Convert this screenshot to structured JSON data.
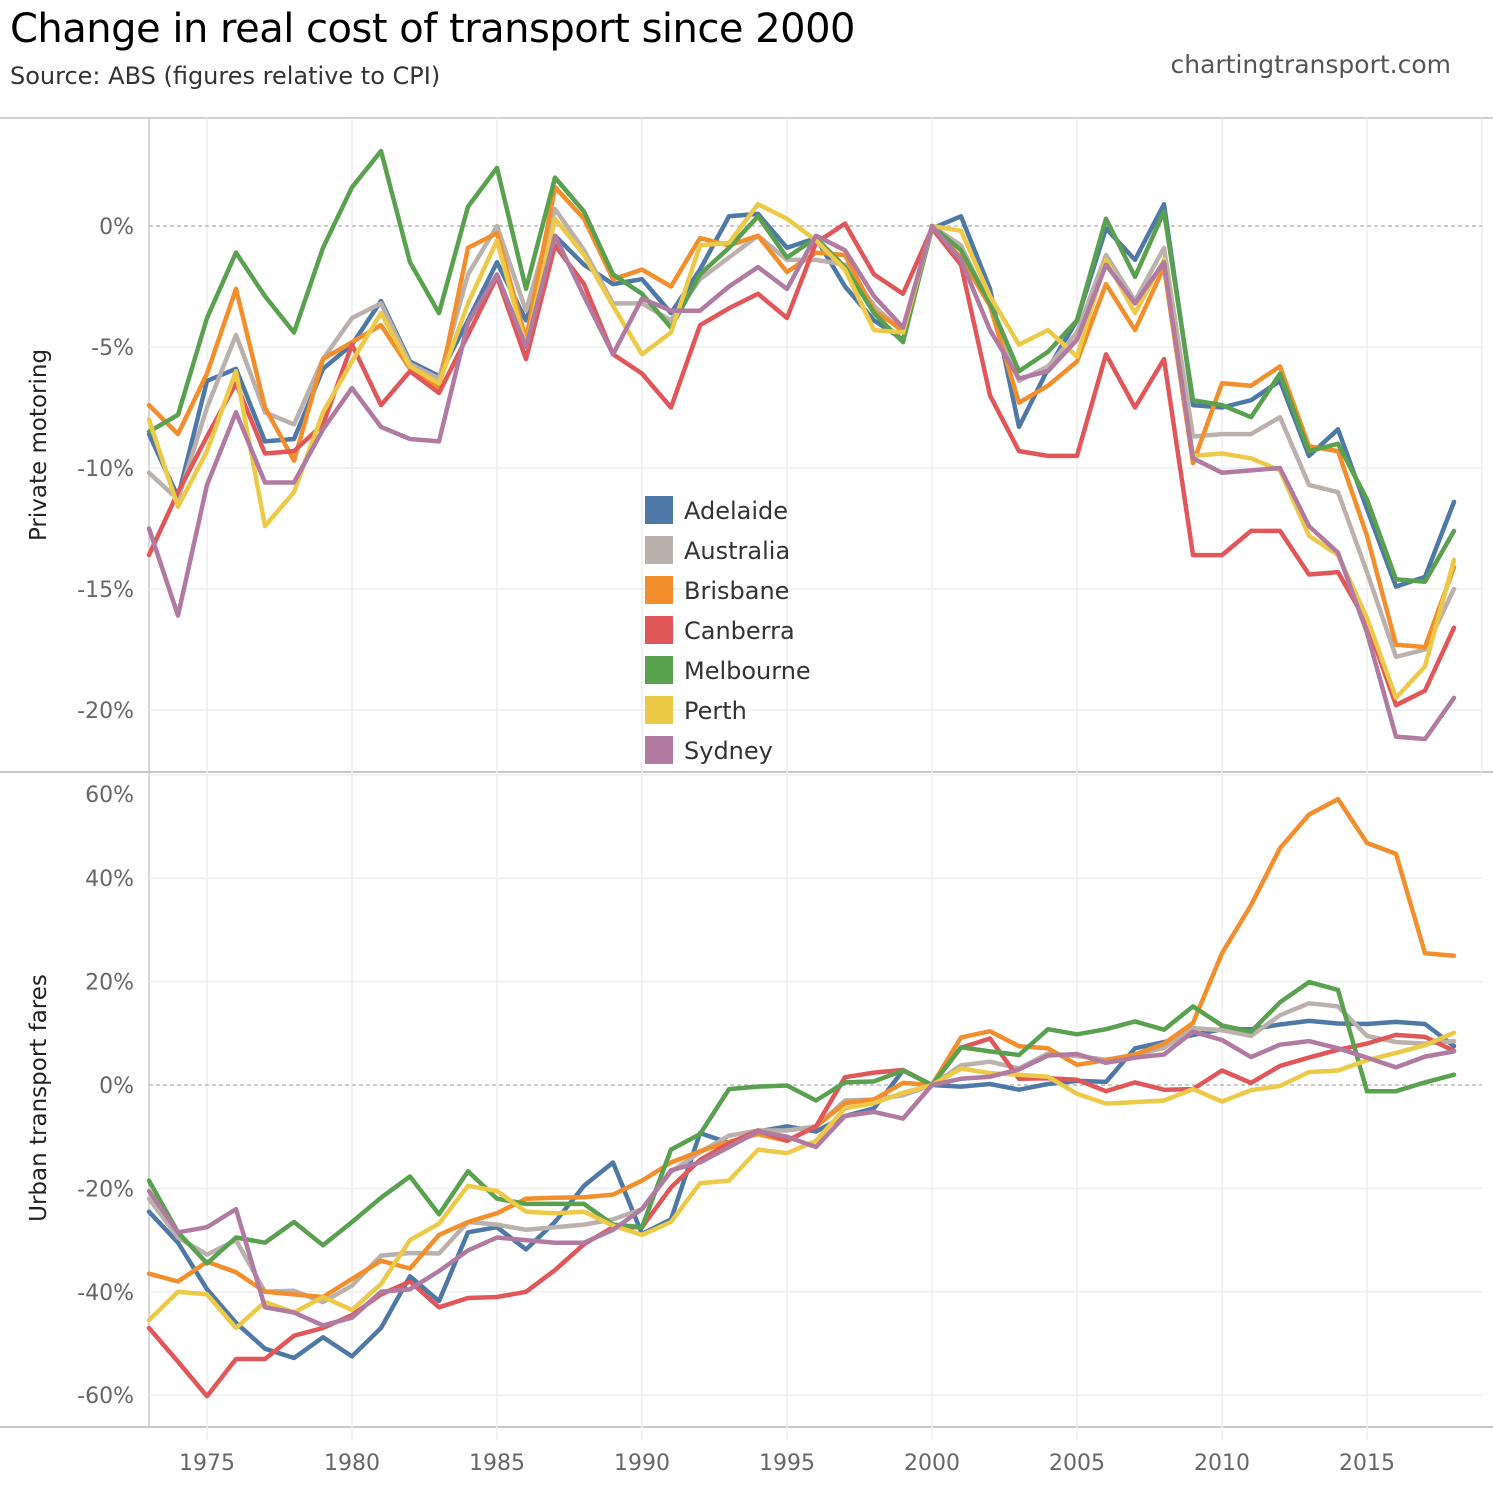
{
  "header": {
    "title": "Change in real cost of transport since 2000",
    "subtitle": "Source: ABS (figures relative to CPI)",
    "credit": "chartingtransport.com"
  },
  "chart_data": [
    {
      "type": "line",
      "panel": "top",
      "title": "Change in real cost of transport since 2000",
      "ylabel": "Private motoring",
      "xlabel": "",
      "ylim": [
        -23,
        4
      ],
      "yticks": [
        0,
        -5,
        -10,
        -15,
        -20
      ],
      "ytick_labels": [
        "0%",
        "-5%",
        "-10%",
        "-15%",
        "-20%"
      ],
      "xlim": [
        1973,
        2018
      ],
      "grid": true,
      "reference_line": 0,
      "legend_position": "center",
      "x": [
        1973,
        1974,
        1975,
        1976,
        1977,
        1978,
        1979,
        1980,
        1981,
        1982,
        1983,
        1984,
        1985,
        1986,
        1987,
        1988,
        1989,
        1990,
        1991,
        1992,
        1993,
        1994,
        1995,
        1996,
        1997,
        1998,
        1999,
        2000,
        2001,
        2002,
        2003,
        2004,
        2005,
        2006,
        2007,
        2008,
        2009,
        2010,
        2011,
        2012,
        2013,
        2014,
        2015,
        2016,
        2017,
        2018
      ],
      "series": [
        {
          "name": "Adelaide",
          "color": "#4e79a7",
          "values": [
            -8.6,
            -11.2,
            -6.4,
            -5.9,
            -8.9,
            -8.8,
            -5.9,
            -4.9,
            -3.1,
            -5.6,
            -6.2,
            -3.9,
            -1.5,
            -3.9,
            -0.4,
            -1.6,
            -2.4,
            -2.2,
            -3.6,
            -1.8,
            0.4,
            0.5,
            -0.9,
            -0.5,
            -2.5,
            -3.9,
            -4.7,
            -0.1,
            0.4,
            -2.6,
            -8.3,
            -5.9,
            -3.9,
            -0.1,
            -1.4,
            0.9,
            -7.4,
            -7.5,
            -7.2,
            -6.4,
            -9.5,
            -8.4,
            -11.7,
            -14.9,
            -14.5,
            -11.4
          ]
        },
        {
          "name": "Australia",
          "color": "#bab0ac",
          "values": [
            -10.2,
            -11.3,
            -7.5,
            -4.5,
            -7.7,
            -8.2,
            -5.5,
            -3.8,
            -3.2,
            -5.7,
            -6.3,
            -2.0,
            0.0,
            -3.5,
            0.7,
            -1.0,
            -3.2,
            -3.2,
            -3.9,
            -2.2,
            -1.3,
            -0.4,
            -1.4,
            -1.4,
            -1.6,
            -3.3,
            -4.4,
            0.0,
            -0.8,
            -3.3,
            -6.4,
            -5.8,
            -4.4,
            -1.2,
            -3.1,
            -0.9,
            -8.7,
            -8.6,
            -8.6,
            -7.9,
            -10.7,
            -11.0,
            -14.3,
            -17.8,
            -17.5,
            -15.0
          ]
        },
        {
          "name": "Brisbane",
          "color": "#f28e2b",
          "values": [
            -7.4,
            -8.6,
            -6.1,
            -2.6,
            -7.5,
            -9.7,
            -5.5,
            -4.8,
            -4.1,
            -5.9,
            -6.7,
            -0.9,
            -0.3,
            -4.7,
            1.6,
            0.3,
            -2.2,
            -1.8,
            -2.5,
            -0.5,
            -0.8,
            -0.4,
            -1.9,
            -1.1,
            -1.2,
            -3.5,
            -4.3,
            -0.1,
            -1.3,
            -3.3,
            -7.3,
            -6.6,
            -5.6,
            -2.4,
            -4.3,
            -1.7,
            -9.8,
            -6.5,
            -6.6,
            -5.8,
            -9.1,
            -9.3,
            -12.8,
            -17.3,
            -17.4,
            -14.1
          ]
        },
        {
          "name": "Canberra",
          "color": "#e15759",
          "values": [
            -13.6,
            -11.0,
            -8.7,
            -6.5,
            -9.4,
            -9.3,
            -8.2,
            -4.9,
            -7.4,
            -6.0,
            -6.9,
            -4.5,
            -2.1,
            -5.5,
            -0.8,
            -2.4,
            -5.3,
            -6.1,
            -7.5,
            -4.1,
            -3.4,
            -2.8,
            -3.8,
            -0.7,
            0.1,
            -2.0,
            -2.8,
            -0.1,
            -1.6,
            -7.0,
            -9.3,
            -9.5,
            -9.5,
            -5.3,
            -7.5,
            -5.5,
            -13.6,
            -13.6,
            -12.6,
            -12.6,
            -14.4,
            -14.3,
            -16.4,
            -19.8,
            -19.2,
            -16.6
          ]
        },
        {
          "name": "Melbourne",
          "color": "#59a14f",
          "values": [
            -8.5,
            -7.8,
            -3.8,
            -1.1,
            -2.9,
            -4.4,
            -0.9,
            1.6,
            3.1,
            -1.5,
            -3.6,
            0.8,
            2.4,
            -2.6,
            2.0,
            0.6,
            -2.0,
            -2.8,
            -4.2,
            -2.0,
            -0.9,
            0.4,
            -1.3,
            -0.5,
            -1.7,
            -3.6,
            -4.8,
            0.0,
            -1.0,
            -3.2,
            -6.0,
            -5.2,
            -3.9,
            0.3,
            -2.1,
            0.6,
            -7.2,
            -7.4,
            -7.9,
            -6.1,
            -9.3,
            -9.0,
            -11.3,
            -14.6,
            -14.7,
            -12.6
          ]
        },
        {
          "name": "Perth",
          "color": "#edc948",
          "values": [
            -8.0,
            -11.6,
            -9.3,
            -6.0,
            -12.4,
            -11.0,
            -7.7,
            -5.6,
            -3.6,
            -5.8,
            -6.5,
            -3.2,
            -0.6,
            -5.0,
            0.3,
            -1.2,
            -3.3,
            -5.3,
            -4.4,
            -0.8,
            -0.7,
            0.9,
            0.3,
            -0.6,
            -1.8,
            -4.3,
            -4.4,
            0.0,
            -0.2,
            -2.9,
            -4.9,
            -4.3,
            -5.4,
            -1.4,
            -3.6,
            -1.4,
            -9.5,
            -9.4,
            -9.6,
            -10.1,
            -12.8,
            -13.6,
            -16.2,
            -19.5,
            -18.2,
            -13.8
          ]
        },
        {
          "name": "Sydney",
          "color": "#b07aa1",
          "values": [
            -12.5,
            -16.1,
            -10.7,
            -7.7,
            -10.6,
            -10.6,
            -8.4,
            -6.7,
            -8.3,
            -8.8,
            -8.9,
            -4.0,
            -2.0,
            -5.0,
            -0.4,
            -2.9,
            -5.3,
            -3.0,
            -3.5,
            -3.5,
            -2.5,
            -1.7,
            -2.6,
            -0.4,
            -1.0,
            -2.9,
            -4.2,
            0.0,
            -1.4,
            -4.3,
            -6.3,
            -6.0,
            -4.7,
            -1.6,
            -3.2,
            -1.5,
            -9.6,
            -10.2,
            -10.1,
            -10.0,
            -12.4,
            -13.5,
            -16.8,
            -21.1,
            -21.2,
            -19.5
          ]
        }
      ]
    },
    {
      "type": "line",
      "panel": "bottom",
      "ylabel": "Urban transport fares",
      "xlabel": "",
      "ylim": [
        -66,
        60
      ],
      "yticks": [
        60,
        40,
        20,
        0,
        -20,
        -40,
        -60
      ],
      "ytick_labels": [
        "60%",
        "40%",
        "20%",
        "0%",
        "-20%",
        "-40%",
        "-60%"
      ],
      "xlim": [
        1973,
        2018
      ],
      "xticks": [
        1975,
        1980,
        1985,
        1990,
        1995,
        2000,
        2005,
        2010,
        2015
      ],
      "xtick_labels": [
        "1975",
        "1980",
        "1985",
        "1990",
        "1995",
        "2000",
        "2005",
        "2010",
        "2015"
      ],
      "grid": true,
      "reference_line": 0,
      "x": [
        1973,
        1974,
        1975,
        1976,
        1977,
        1978,
        1979,
        1980,
        1981,
        1982,
        1983,
        1984,
        1985,
        1986,
        1987,
        1988,
        1989,
        1990,
        1991,
        1992,
        1993,
        1994,
        1995,
        1996,
        1997,
        1998,
        1999,
        2000,
        2001,
        2002,
        2003,
        2004,
        2005,
        2006,
        2007,
        2008,
        2009,
        2010,
        2011,
        2012,
        2013,
        2014,
        2015,
        2016,
        2017,
        2018
      ],
      "series": [
        {
          "name": "Adelaide",
          "color": "#4e79a7",
          "values": [
            -24.5,
            -30.5,
            -39.5,
            -46.0,
            -51.0,
            -52.8,
            -48.8,
            -52.5,
            -47.0,
            -37.0,
            -41.8,
            -28.5,
            -27.5,
            -31.8,
            -26.5,
            -19.5,
            -15.0,
            -28.8,
            -26.0,
            -9.3,
            -11.2,
            -9.0,
            -8.0,
            -9.0,
            -6.0,
            -4.5,
            2.8,
            0.0,
            -0.3,
            0.2,
            -0.9,
            0.2,
            0.8,
            0.6,
            7.1,
            8.3,
            9.7,
            10.8,
            10.8,
            11.7,
            12.4,
            11.9,
            11.8,
            12.2,
            11.8,
            7.5
          ]
        },
        {
          "name": "Australia",
          "color": "#bab0ac",
          "values": [
            -22.0,
            -29.5,
            -32.8,
            -30.0,
            -40.0,
            -39.8,
            -42.0,
            -38.8,
            -33.0,
            -32.5,
            -32.6,
            -26.5,
            -27.0,
            -28.0,
            -27.5,
            -27.0,
            -26.0,
            -24.0,
            -16.8,
            -13.0,
            -9.8,
            -8.8,
            -8.8,
            -8.0,
            -3.0,
            -2.8,
            -2.0,
            0.0,
            3.8,
            4.5,
            3.2,
            6.1,
            5.6,
            4.9,
            5.8,
            7.2,
            11.0,
            10.6,
            9.5,
            13.5,
            15.8,
            15.2,
            9.5,
            8.3,
            8.0,
            8.5
          ]
        },
        {
          "name": "Brisbane",
          "color": "#f28e2b",
          "values": [
            -36.5,
            -38.0,
            -34.2,
            -36.2,
            -40.0,
            -40.5,
            -41.0,
            -37.5,
            -34.0,
            -35.5,
            -29.0,
            -26.5,
            -24.8,
            -22.0,
            -21.8,
            -21.7,
            -21.2,
            -18.5,
            -15.0,
            -12.8,
            -11.0,
            -9.5,
            -10.8,
            -8.0,
            -3.5,
            -2.8,
            0.4,
            0.0,
            9.2,
            10.4,
            7.5,
            7.1,
            3.9,
            4.8,
            5.9,
            8.0,
            12.0,
            25.5,
            34.8,
            45.8,
            52.3,
            55.3,
            46.8,
            44.7,
            25.5,
            25.0
          ]
        },
        {
          "name": "Canberra",
          "color": "#e15759",
          "values": [
            -47.0,
            -53.5,
            -60.2,
            -53.0,
            -53.0,
            -48.5,
            -47.0,
            -44.5,
            -40.5,
            -38.0,
            -43.0,
            -41.2,
            -41.0,
            -40.0,
            -35.8,
            -30.8,
            -27.5,
            -27.5,
            -19.8,
            -14.5,
            -11.3,
            -8.8,
            -10.8,
            -8.0,
            1.5,
            2.4,
            2.9,
            0.0,
            7.2,
            9.0,
            1.2,
            1.3,
            1.0,
            -1.2,
            0.5,
            -0.9,
            -0.8,
            2.8,
            0.4,
            3.7,
            5.3,
            6.8,
            8.0,
            9.7,
            9.3,
            6.6
          ]
        },
        {
          "name": "Melbourne",
          "color": "#59a14f",
          "values": [
            -18.5,
            -28.5,
            -34.5,
            -29.5,
            -30.5,
            -26.5,
            -31.0,
            -26.5,
            -21.8,
            -17.7,
            -25.0,
            -16.7,
            -22.0,
            -23.0,
            -23.0,
            -23.0,
            -27.0,
            -27.5,
            -12.5,
            -9.5,
            -0.8,
            -0.3,
            -0.1,
            -3.0,
            0.5,
            0.7,
            2.8,
            0.0,
            7.3,
            6.5,
            5.8,
            10.8,
            9.8,
            10.8,
            12.3,
            10.7,
            15.2,
            11.5,
            10.3,
            16.0,
            19.9,
            18.4,
            -1.2,
            -1.2,
            0.5,
            2.0
          ]
        },
        {
          "name": "Perth",
          "color": "#edc948",
          "values": [
            -45.5,
            -40.0,
            -40.5,
            -47.0,
            -42.0,
            -44.0,
            -41.0,
            -43.5,
            -38.5,
            -30.0,
            -26.8,
            -19.5,
            -20.5,
            -24.5,
            -24.8,
            -24.5,
            -27.2,
            -29.0,
            -26.5,
            -19.0,
            -18.5,
            -12.5,
            -13.2,
            -10.8,
            -4.5,
            -3.5,
            -1.5,
            0.0,
            3.2,
            2.3,
            2.0,
            1.6,
            -1.7,
            -3.6,
            -3.3,
            -3.0,
            -0.8,
            -3.2,
            -1.0,
            -0.2,
            2.5,
            2.8,
            4.8,
            6.2,
            7.7,
            10.1
          ]
        },
        {
          "name": "Sydney",
          "color": "#b07aa1",
          "values": [
            -20.5,
            -28.5,
            -27.5,
            -24.0,
            -43.0,
            -44.0,
            -46.5,
            -45.0,
            -40.0,
            -39.5,
            -36.0,
            -32.0,
            -29.5,
            -30.0,
            -30.5,
            -30.5,
            -28.0,
            -24.0,
            -16.5,
            -15.0,
            -12.0,
            -9.0,
            -10.0,
            -12.0,
            -6.0,
            -5.2,
            -6.5,
            0.0,
            1.2,
            1.6,
            3.0,
            5.7,
            6.0,
            4.3,
            5.3,
            5.9,
            10.3,
            8.7,
            5.4,
            7.8,
            8.5,
            7.1,
            5.3,
            3.4,
            5.5,
            6.5
          ]
        }
      ]
    }
  ],
  "legend": {
    "items": [
      {
        "label": "Adelaide",
        "color": "#4e79a7"
      },
      {
        "label": "Australia",
        "color": "#bab0ac"
      },
      {
        "label": "Brisbane",
        "color": "#f28e2b"
      },
      {
        "label": "Canberra",
        "color": "#e15759"
      },
      {
        "label": "Melbourne",
        "color": "#59a14f"
      },
      {
        "label": "Perth",
        "color": "#edc948"
      },
      {
        "label": "Sydney",
        "color": "#b07aa1"
      }
    ]
  }
}
